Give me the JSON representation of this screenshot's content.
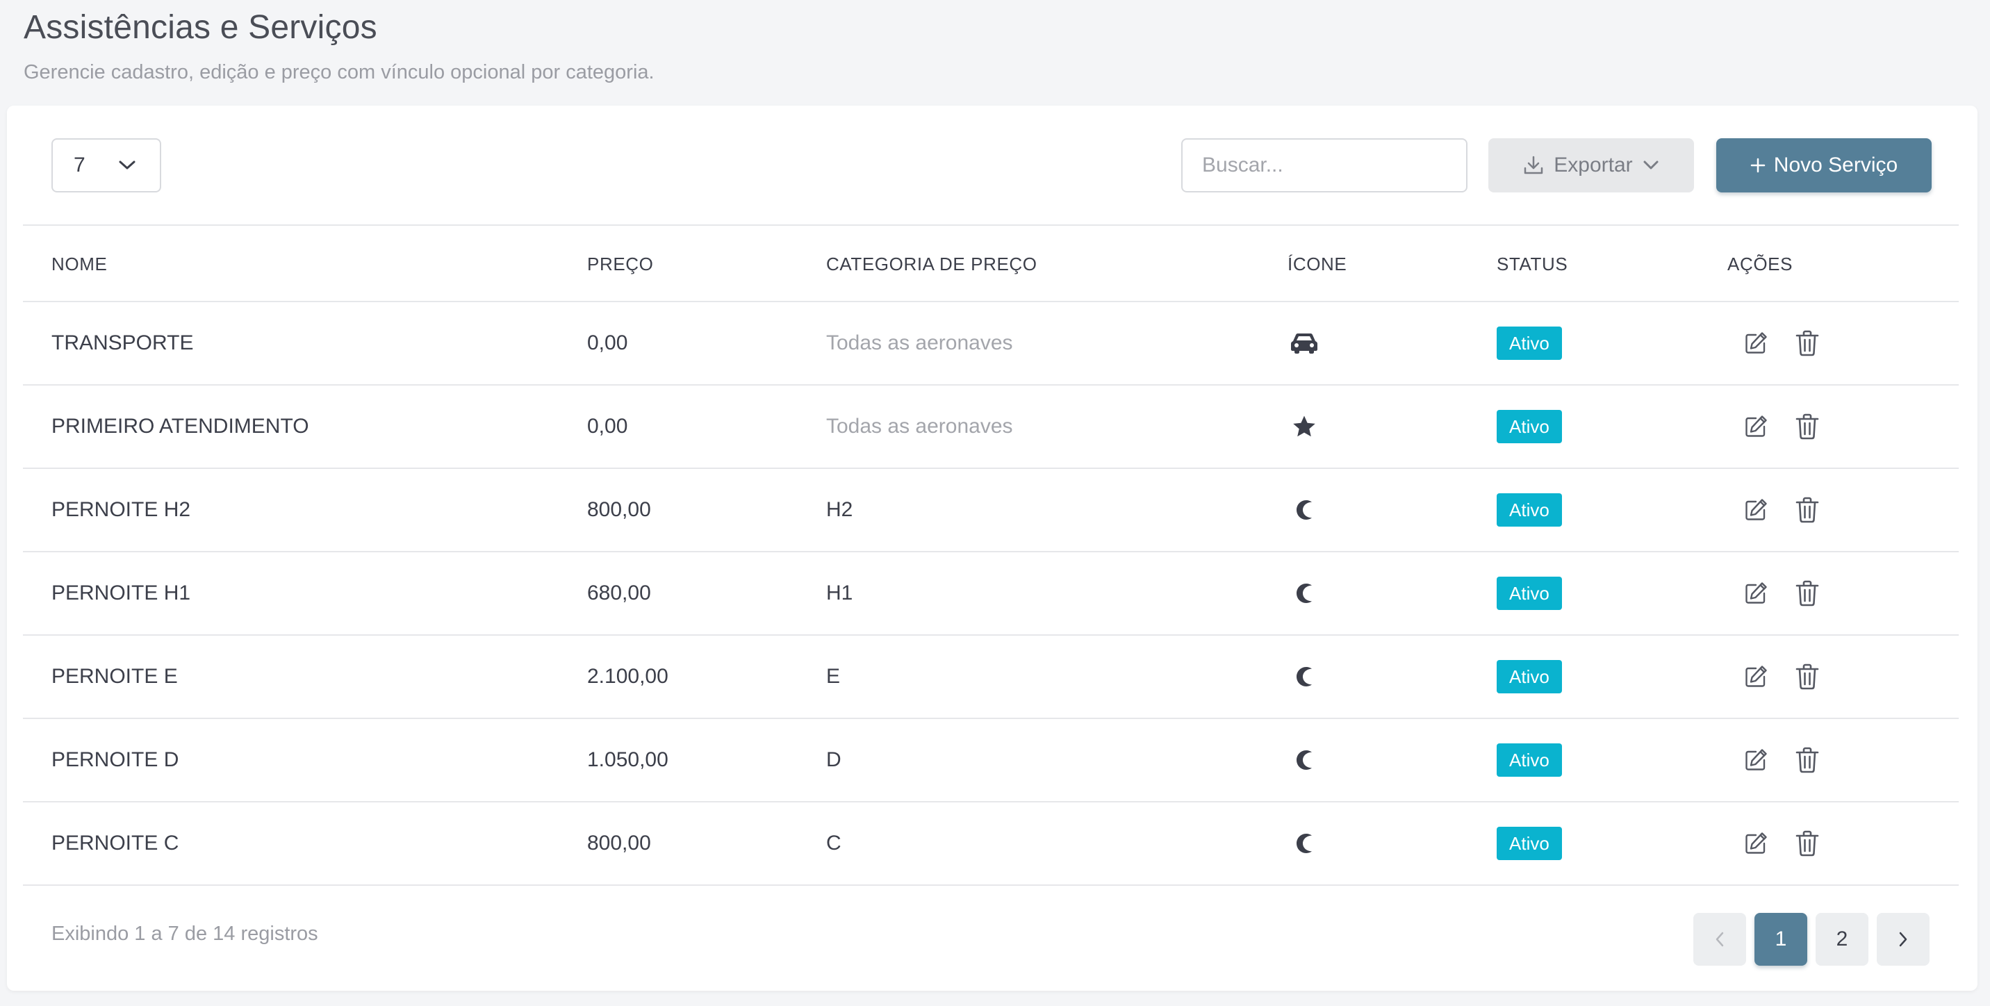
{
  "header": {
    "title": "Assistências e Serviços",
    "subtitle": "Gerencie cadastro, edição e preço com vínculo opcional por categoria."
  },
  "toolbar": {
    "page_size": "7",
    "search_placeholder": "Buscar...",
    "export_label": "Exportar",
    "new_label": "Novo Serviço"
  },
  "table": {
    "columns": [
      "NOME",
      "PREÇO",
      "CATEGORIA DE PREÇO",
      "ÍCONE",
      "STATUS",
      "AÇÕES"
    ],
    "rows": [
      {
        "name": "TRANSPORTE",
        "price": "0,00",
        "category": "Todas as aeronaves",
        "category_muted": true,
        "icon": "car-icon",
        "status": "Ativo"
      },
      {
        "name": "PRIMEIRO ATENDIMENTO",
        "price": "0,00",
        "category": "Todas as aeronaves",
        "category_muted": true,
        "icon": "star-icon",
        "status": "Ativo"
      },
      {
        "name": "PERNOITE H2",
        "price": "800,00",
        "category": "H2",
        "category_muted": false,
        "icon": "moon-icon",
        "status": "Ativo"
      },
      {
        "name": "PERNOITE H1",
        "price": "680,00",
        "category": "H1",
        "category_muted": false,
        "icon": "moon-icon",
        "status": "Ativo"
      },
      {
        "name": "PERNOITE E",
        "price": "2.100,00",
        "category": "E",
        "category_muted": false,
        "icon": "moon-icon",
        "status": "Ativo"
      },
      {
        "name": "PERNOITE D",
        "price": "1.050,00",
        "category": "D",
        "category_muted": false,
        "icon": "moon-icon",
        "status": "Ativo"
      },
      {
        "name": "PERNOITE C",
        "price": "800,00",
        "category": "C",
        "category_muted": false,
        "icon": "moon-icon",
        "status": "Ativo"
      }
    ]
  },
  "footer": {
    "info": "Exibindo 1 a 7 de 14 registros",
    "pages": [
      "1",
      "2"
    ],
    "current_page": "1"
  },
  "colors": {
    "primary": "#557f98",
    "status_active": "#0ab3cf",
    "background": "#f4f5f7"
  }
}
